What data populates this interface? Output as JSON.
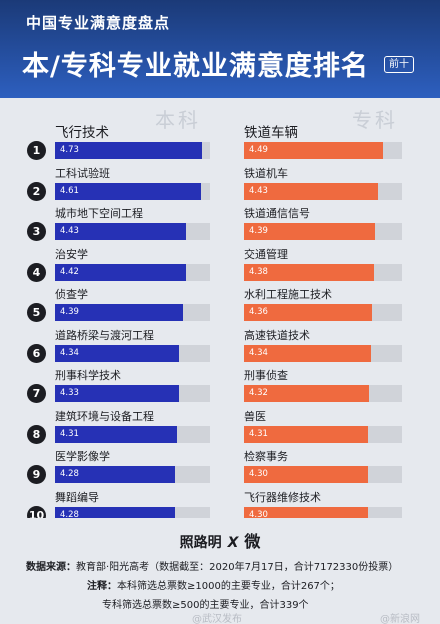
{
  "header": {
    "subtitle": "中国专业满意度盘点",
    "title": "本/专科专业就业满意度排名",
    "badge": "前十"
  },
  "chart_data": {
    "type": "bar",
    "scale_max": 5,
    "panels": [
      {
        "label": "本科",
        "side": "left",
        "items": [
          {
            "rank": "1",
            "name": "飞行技术",
            "value": 4.73
          },
          {
            "rank": "2",
            "name": "工科试验班",
            "value": 4.61
          },
          {
            "rank": "3",
            "name": "城市地下空间工程",
            "value": 4.43
          },
          {
            "rank": "4",
            "name": "治安学",
            "value": 4.42
          },
          {
            "rank": "5",
            "name": "侦查学",
            "value": 4.39
          },
          {
            "rank": "6",
            "name": "道路桥梁与渡河工程",
            "value": 4.34
          },
          {
            "rank": "7",
            "name": "刑事科学技术",
            "value": 4.33
          },
          {
            "rank": "8",
            "name": "建筑环境与设备工程",
            "value": 4.31
          },
          {
            "rank": "9",
            "name": "医学影像学",
            "value": 4.28
          },
          {
            "rank": "10",
            "name": "舞蹈编导",
            "value": 4.28
          }
        ]
      },
      {
        "label": "专科",
        "side": "right",
        "items": [
          {
            "name": "铁道车辆",
            "value": 4.49
          },
          {
            "name": "铁道机车",
            "value": 4.43
          },
          {
            "name": "铁道通信信号",
            "value": 4.39
          },
          {
            "name": "交通管理",
            "value": 4.38
          },
          {
            "name": "水利工程施工技术",
            "value": 4.36
          },
          {
            "name": "高速铁道技术",
            "value": 4.34
          },
          {
            "name": "刑事侦查",
            "value": 4.32
          },
          {
            "name": "兽医",
            "value": 4.31
          },
          {
            "name": "检察事务",
            "value": 4.3
          },
          {
            "name": "飞行器维修技术",
            "value": 4.3
          }
        ]
      }
    ]
  },
  "footer": {
    "logo_left": "照路明",
    "logo_x": "X",
    "logo_right": "微",
    "source_label": "数据来源：",
    "source_text": "教育部·阳光高考（数据截至：2020年7月17日，合计7172330份投票）",
    "note_label": "注释：",
    "note_text": "本科筛选总票数≥1000的主要专业，合计267个；",
    "note_text2": "专科筛选总票数≥500的主要专业，合计339个",
    "watermark_left": "@武汉发布",
    "watermark_right": "@新浪网"
  },
  "colors": {
    "header_bg": "#1b3a78",
    "left_bar": "#2631b5",
    "right_bar": "#ef6a3f",
    "track": "#d0d3d9"
  }
}
